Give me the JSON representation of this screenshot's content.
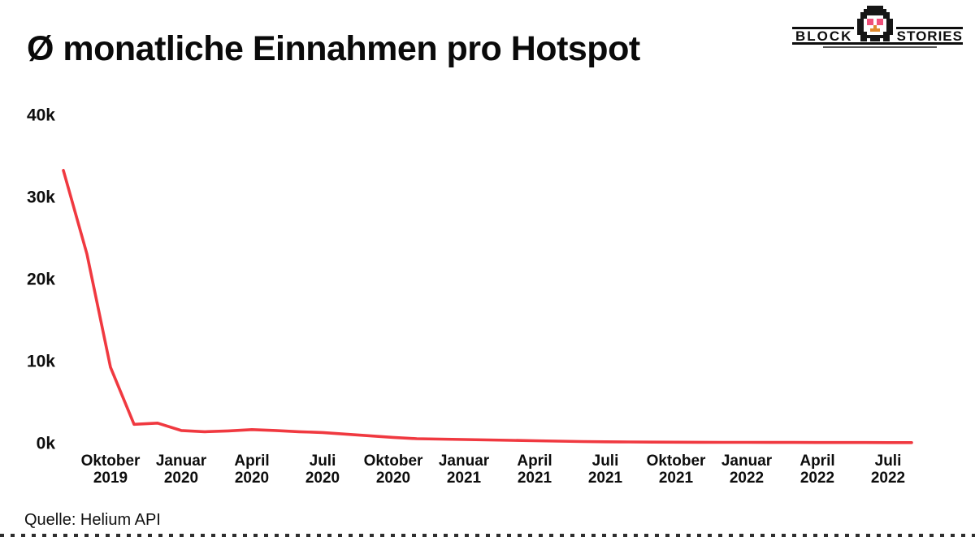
{
  "header": {
    "title": "Ø monatliche Einnahmen pro Hotspot"
  },
  "logo": {
    "left_word": "BLOCK",
    "right_word": "STORIES",
    "mascot_icon": "penguin-heart-eyes-icon"
  },
  "source": {
    "label": "Quelle: Helium API"
  },
  "chart_data": {
    "type": "line",
    "title": "Ø monatliche Einnahmen pro Hotspot",
    "xlabel": "",
    "ylabel": "",
    "ylim": [
      0,
      40000
    ],
    "grid": false,
    "legend": false,
    "line_color": "#f03940",
    "tick_color": "#0d0d0d",
    "x": [
      "Aug 2019",
      "Sep 2019",
      "Okt 2019",
      "Nov 2019",
      "Dez 2019",
      "Jan 2020",
      "Feb 2020",
      "Mär 2020",
      "Apr 2020",
      "Mai 2020",
      "Jun 2020",
      "Jul 2020",
      "Aug 2020",
      "Sep 2020",
      "Okt 2020",
      "Nov 2020",
      "Dez 2020",
      "Jan 2021",
      "Feb 2021",
      "Mär 2021",
      "Apr 2021",
      "Mai 2021",
      "Jun 2021",
      "Jul 2021",
      "Aug 2021",
      "Sep 2021",
      "Okt 2021",
      "Nov 2021",
      "Dez 2021",
      "Jan 2022",
      "Feb 2022",
      "Mär 2022",
      "Apr 2022",
      "Mai 2022",
      "Jun 2022",
      "Jul 2022",
      "Aug 2022"
    ],
    "values": [
      33200,
      23000,
      9200,
      2250,
      2400,
      1500,
      1350,
      1450,
      1600,
      1500,
      1350,
      1250,
      1050,
      850,
      650,
      500,
      450,
      400,
      350,
      300,
      250,
      200,
      150,
      120,
      100,
      80,
      70,
      60,
      50,
      50,
      40,
      40,
      30,
      30,
      30,
      20,
      20
    ],
    "y_ticks": [
      {
        "value": 0,
        "label": "0k"
      },
      {
        "value": 10000,
        "label": "10k"
      },
      {
        "value": 20000,
        "label": "20k"
      },
      {
        "value": 30000,
        "label": "30k"
      },
      {
        "value": 40000,
        "label": "40k"
      }
    ],
    "x_ticks": [
      {
        "index": 2,
        "month": "Oktober",
        "year": "2019"
      },
      {
        "index": 5,
        "month": "Januar",
        "year": "2020"
      },
      {
        "index": 8,
        "month": "April",
        "year": "2020"
      },
      {
        "index": 11,
        "month": "Juli",
        "year": "2020"
      },
      {
        "index": 14,
        "month": "Oktober",
        "year": "2020"
      },
      {
        "index": 17,
        "month": "Januar",
        "year": "2021"
      },
      {
        "index": 20,
        "month": "April",
        "year": "2021"
      },
      {
        "index": 23,
        "month": "Juli",
        "year": "2021"
      },
      {
        "index": 26,
        "month": "Oktober",
        "year": "2021"
      },
      {
        "index": 29,
        "month": "Januar",
        "year": "2022"
      },
      {
        "index": 32,
        "month": "April",
        "year": "2022"
      },
      {
        "index": 35,
        "month": "Juli",
        "year": "2022"
      }
    ]
  }
}
